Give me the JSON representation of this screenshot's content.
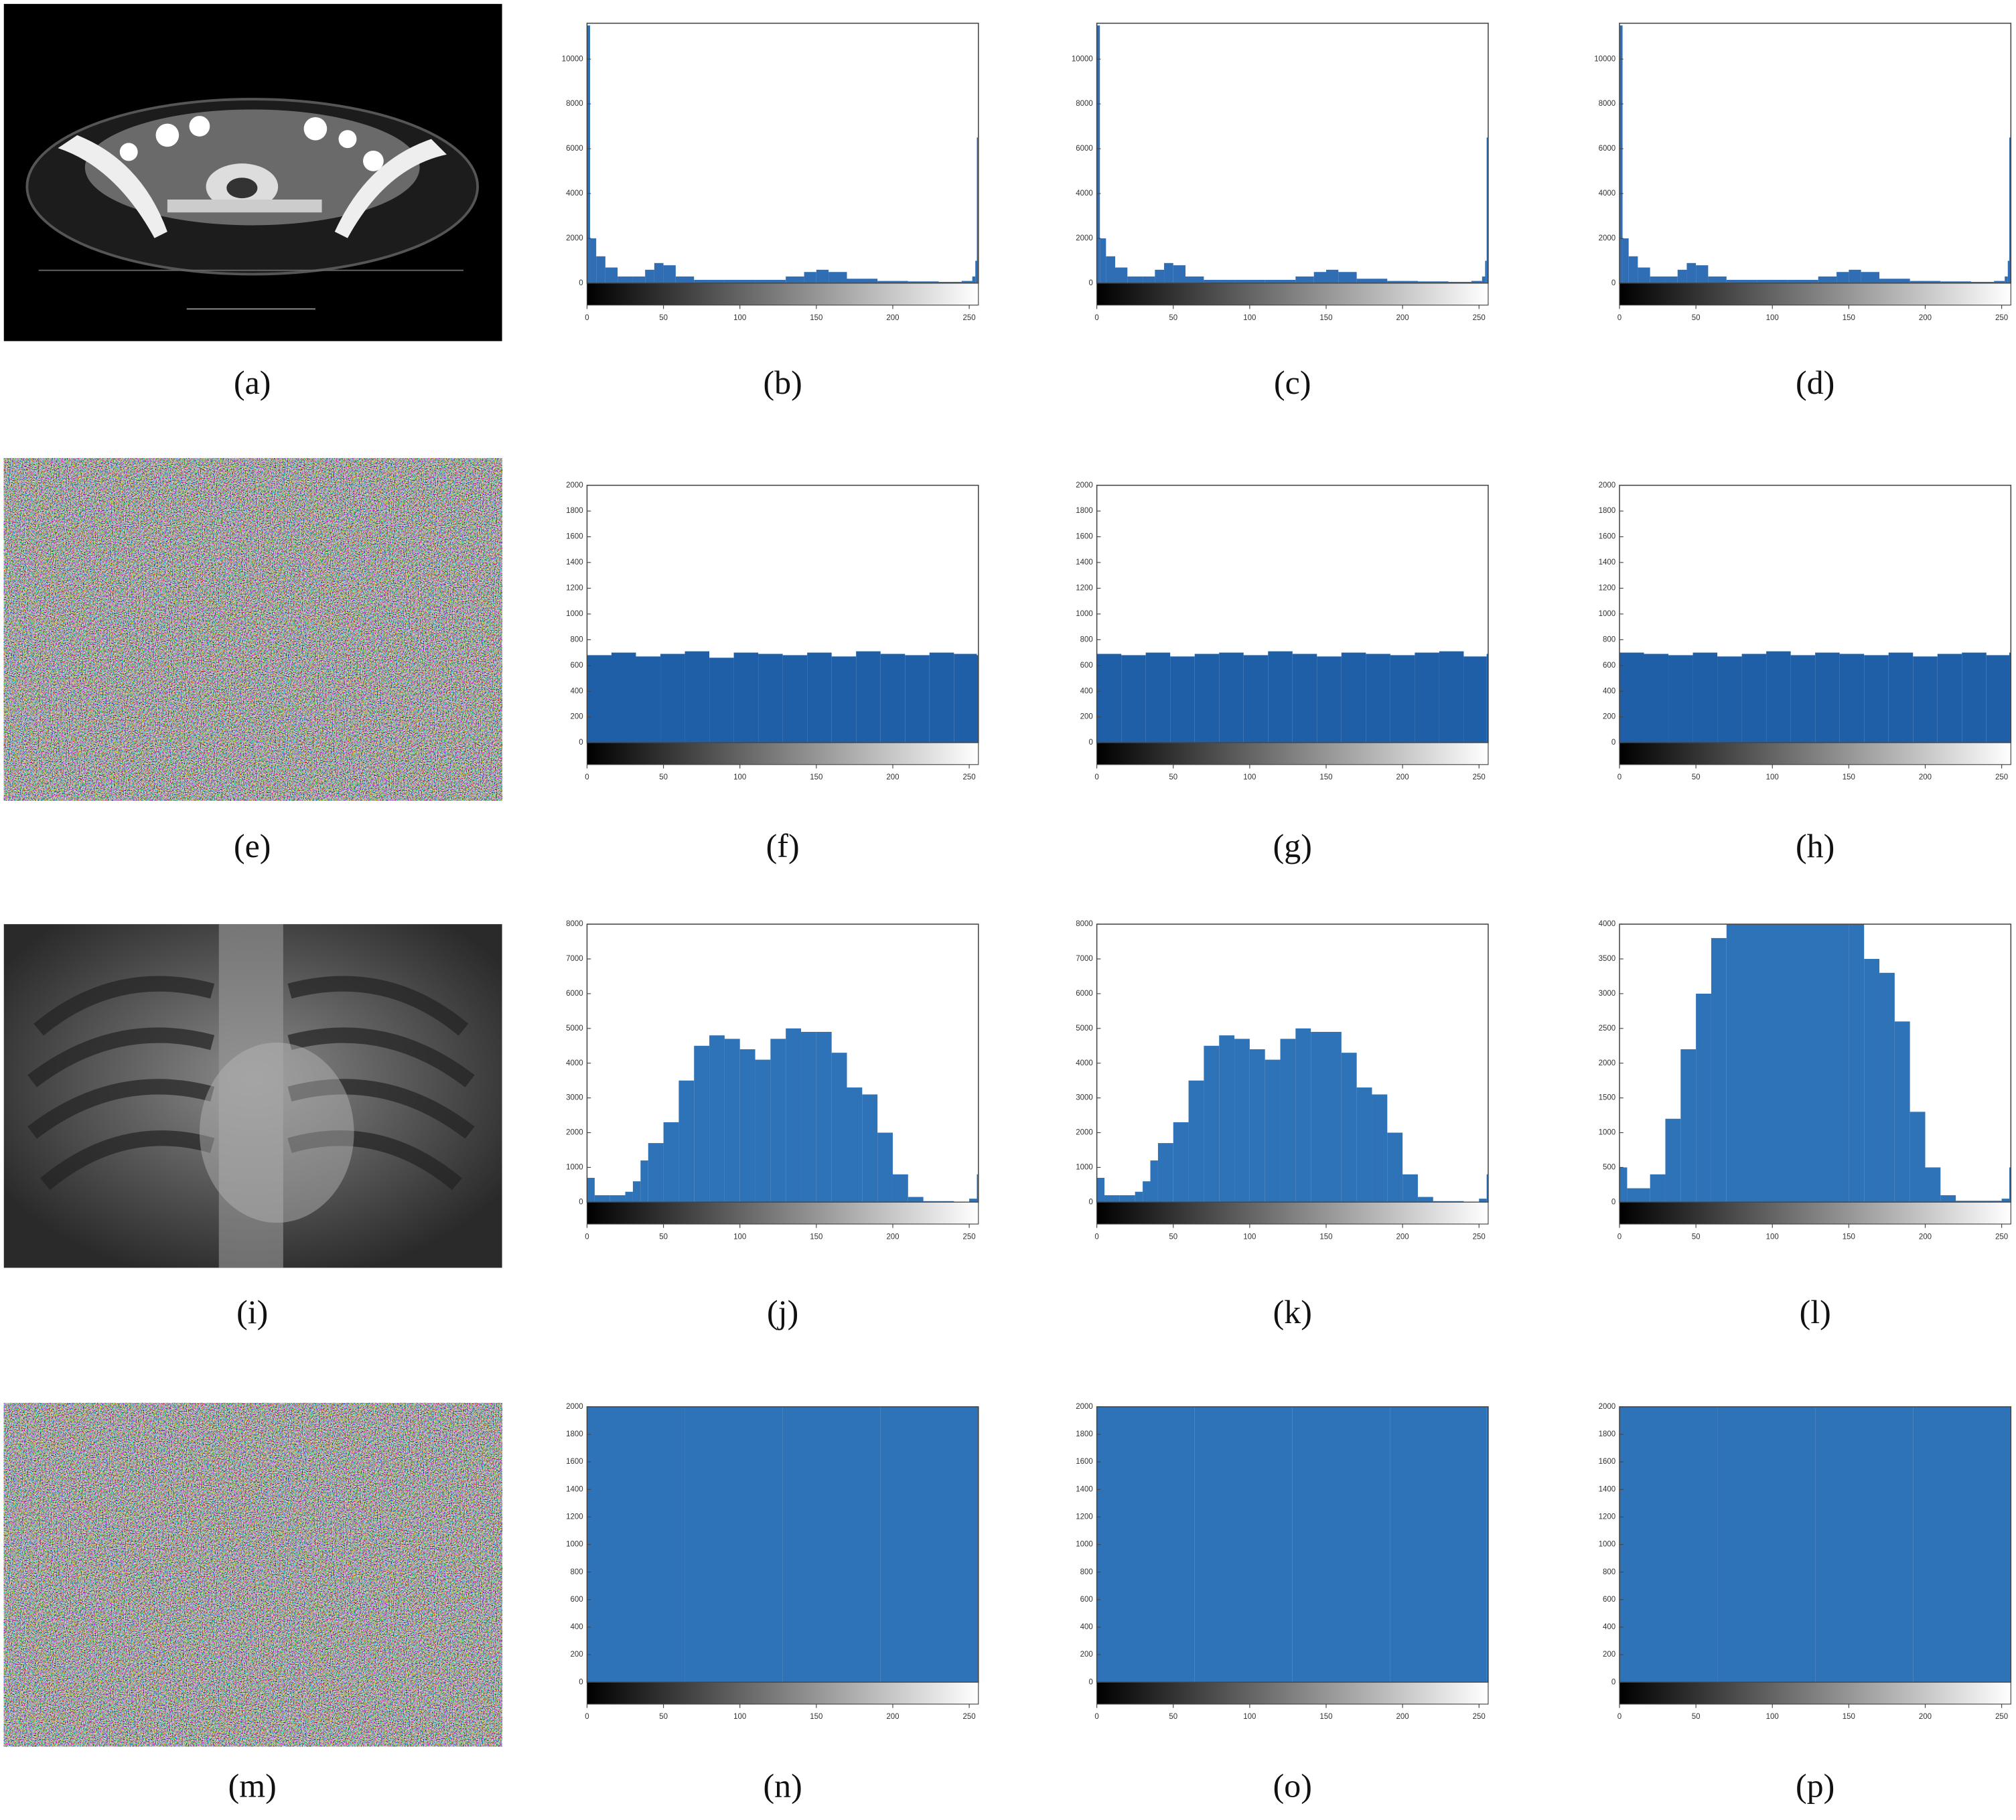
{
  "images": [
    {
      "caption": "(a)"
    },
    {
      "caption": "(e)"
    },
    {
      "caption": "(i)"
    },
    {
      "caption": "(m)"
    }
  ],
  "chart_data": [
    {
      "type": "bar",
      "caption": "(b)",
      "color": "#2f6db5",
      "xlim": [
        0,
        256
      ],
      "ylim": [
        0,
        11600
      ],
      "xticks": [
        0,
        50,
        100,
        150,
        200,
        250
      ],
      "yticks": [
        0,
        2000,
        4000,
        6000,
        8000,
        10000
      ],
      "x": [
        0,
        2,
        6,
        12,
        20,
        30,
        38,
        44,
        50,
        58,
        70,
        90,
        110,
        130,
        142,
        150,
        158,
        170,
        190,
        210,
        230,
        245,
        252,
        254,
        255
      ],
      "values": [
        11500,
        2000,
        1200,
        700,
        300,
        300,
        600,
        900,
        800,
        300,
        150,
        150,
        150,
        300,
        500,
        600,
        500,
        200,
        100,
        80,
        60,
        100,
        300,
        1000,
        6500
      ]
    },
    {
      "type": "bar",
      "caption": "(c)",
      "color": "#2f6db5",
      "xlim": [
        0,
        256
      ],
      "ylim": [
        0,
        11600
      ],
      "xticks": [
        0,
        50,
        100,
        150,
        200,
        250
      ],
      "yticks": [
        0,
        2000,
        4000,
        6000,
        8000,
        10000
      ],
      "x": [
        0,
        2,
        6,
        12,
        20,
        30,
        38,
        44,
        50,
        58,
        70,
        90,
        110,
        130,
        142,
        150,
        158,
        170,
        190,
        210,
        230,
        245,
        252,
        254,
        255
      ],
      "values": [
        11500,
        2000,
        1200,
        700,
        300,
        300,
        600,
        900,
        800,
        300,
        150,
        150,
        150,
        300,
        500,
        600,
        500,
        200,
        100,
        80,
        60,
        100,
        300,
        1000,
        6500
      ]
    },
    {
      "type": "bar",
      "caption": "(d)",
      "color": "#2f6db5",
      "xlim": [
        0,
        256
      ],
      "ylim": [
        0,
        11600
      ],
      "xticks": [
        0,
        50,
        100,
        150,
        200,
        250
      ],
      "yticks": [
        0,
        2000,
        4000,
        6000,
        8000,
        10000
      ],
      "x": [
        0,
        2,
        6,
        12,
        20,
        30,
        38,
        44,
        50,
        58,
        70,
        90,
        110,
        130,
        142,
        150,
        158,
        170,
        190,
        210,
        230,
        245,
        252,
        254,
        255
      ],
      "values": [
        11500,
        2000,
        1200,
        700,
        300,
        300,
        600,
        900,
        800,
        300,
        150,
        150,
        150,
        300,
        500,
        600,
        500,
        200,
        100,
        80,
        60,
        100,
        300,
        1000,
        6500
      ]
    },
    {
      "type": "bar",
      "caption": "(f)",
      "color": "#1f5fa8",
      "xlim": [
        0,
        256
      ],
      "ylim": [
        0,
        2000
      ],
      "xticks": [
        0,
        50,
        100,
        150,
        200,
        250
      ],
      "yticks": [
        0,
        200,
        400,
        600,
        800,
        1000,
        1200,
        1400,
        1600,
        1800,
        2000
      ],
      "x": [
        0,
        16,
        32,
        48,
        64,
        80,
        96,
        112,
        128,
        144,
        160,
        176,
        192,
        208,
        224,
        240,
        255
      ],
      "values": [
        680,
        700,
        670,
        690,
        710,
        660,
        700,
        690,
        680,
        700,
        670,
        710,
        690,
        680,
        700,
        690,
        680
      ]
    },
    {
      "type": "bar",
      "caption": "(g)",
      "color": "#1f5fa8",
      "xlim": [
        0,
        256
      ],
      "ylim": [
        0,
        2000
      ],
      "xticks": [
        0,
        50,
        100,
        150,
        200,
        250
      ],
      "yticks": [
        0,
        200,
        400,
        600,
        800,
        1000,
        1200,
        1400,
        1600,
        1800,
        2000
      ],
      "x": [
        0,
        16,
        32,
        48,
        64,
        80,
        96,
        112,
        128,
        144,
        160,
        176,
        192,
        208,
        224,
        240,
        255
      ],
      "values": [
        690,
        680,
        700,
        670,
        690,
        700,
        680,
        710,
        690,
        670,
        700,
        690,
        680,
        700,
        710,
        670,
        690
      ]
    },
    {
      "type": "bar",
      "caption": "(h)",
      "color": "#1f5fa8",
      "xlim": [
        0,
        256
      ],
      "ylim": [
        0,
        2000
      ],
      "xticks": [
        0,
        50,
        100,
        150,
        200,
        250
      ],
      "yticks": [
        0,
        200,
        400,
        600,
        800,
        1000,
        1200,
        1400,
        1600,
        1800,
        2000
      ],
      "x": [
        0,
        16,
        32,
        48,
        64,
        80,
        96,
        112,
        128,
        144,
        160,
        176,
        192,
        208,
        224,
        240,
        255
      ],
      "values": [
        700,
        690,
        680,
        700,
        670,
        690,
        710,
        680,
        700,
        690,
        680,
        700,
        670,
        690,
        700,
        680,
        700
      ]
    },
    {
      "type": "bar",
      "caption": "(j)",
      "color": "#2e72b8",
      "xlim": [
        0,
        256
      ],
      "ylim": [
        0,
        8000
      ],
      "xticks": [
        0,
        50,
        100,
        150,
        200,
        250
      ],
      "yticks": [
        0,
        1000,
        2000,
        3000,
        4000,
        5000,
        6000,
        7000,
        8000
      ],
      "x": [
        0,
        5,
        15,
        25,
        30,
        35,
        40,
        50,
        60,
        70,
        80,
        90,
        100,
        110,
        120,
        130,
        140,
        150,
        160,
        170,
        180,
        190,
        200,
        210,
        220,
        240,
        250,
        255
      ],
      "values": [
        700,
        200,
        200,
        300,
        600,
        1200,
        1700,
        2300,
        3500,
        4500,
        4800,
        4700,
        4400,
        4100,
        4700,
        5000,
        4900,
        4900,
        4300,
        3300,
        3100,
        2000,
        800,
        150,
        30,
        10,
        100,
        800
      ]
    },
    {
      "type": "bar",
      "caption": "(k)",
      "color": "#2e72b8",
      "xlim": [
        0,
        256
      ],
      "ylim": [
        0,
        8000
      ],
      "xticks": [
        0,
        50,
        100,
        150,
        200,
        250
      ],
      "yticks": [
        0,
        1000,
        2000,
        3000,
        4000,
        5000,
        6000,
        7000,
        8000
      ],
      "x": [
        0,
        5,
        15,
        25,
        30,
        35,
        40,
        50,
        60,
        70,
        80,
        90,
        100,
        110,
        120,
        130,
        140,
        150,
        160,
        170,
        180,
        190,
        200,
        210,
        220,
        240,
        250,
        255
      ],
      "values": [
        700,
        200,
        200,
        300,
        600,
        1200,
        1700,
        2300,
        3500,
        4500,
        4800,
        4700,
        4400,
        4100,
        4700,
        5000,
        4900,
        4900,
        4300,
        3300,
        3100,
        2000,
        800,
        150,
        30,
        10,
        100,
        800
      ]
    },
    {
      "type": "bar",
      "caption": "(l)",
      "color": "#2e72b8",
      "xlim": [
        0,
        256
      ],
      "ylim": [
        0,
        4000
      ],
      "xticks": [
        0,
        50,
        100,
        150,
        200,
        250
      ],
      "yticks": [
        0,
        500,
        1000,
        1500,
        2000,
        2500,
        3000,
        3500,
        4000
      ],
      "x": [
        0,
        5,
        20,
        30,
        40,
        50,
        60,
        70,
        150,
        160,
        170,
        180,
        190,
        200,
        210,
        220,
        250,
        255
      ],
      "values": [
        500,
        200,
        400,
        1200,
        2200,
        3000,
        3800,
        4000,
        4000,
        3500,
        3300,
        2600,
        1300,
        500,
        100,
        20,
        50,
        500
      ]
    },
    {
      "type": "bar",
      "caption": "(n)",
      "color": "#2e72b8",
      "xlim": [
        0,
        256
      ],
      "ylim": [
        0,
        2000
      ],
      "xticks": [
        0,
        50,
        100,
        150,
        200,
        250
      ],
      "yticks": [
        0,
        200,
        400,
        600,
        800,
        1000,
        1200,
        1400,
        1600,
        1800,
        2000
      ],
      "x": [
        0,
        64,
        128,
        192,
        255
      ],
      "values": [
        2000,
        2000,
        2000,
        2000,
        2000
      ]
    },
    {
      "type": "bar",
      "caption": "(o)",
      "color": "#2e72b8",
      "xlim": [
        0,
        256
      ],
      "ylim": [
        0,
        2000
      ],
      "xticks": [
        0,
        50,
        100,
        150,
        200,
        250
      ],
      "yticks": [
        0,
        200,
        400,
        600,
        800,
        1000,
        1200,
        1400,
        1600,
        1800,
        2000
      ],
      "x": [
        0,
        64,
        128,
        192,
        255
      ],
      "values": [
        2000,
        2000,
        2000,
        2000,
        2000
      ]
    },
    {
      "type": "bar",
      "caption": "(p)",
      "color": "#2e72b8",
      "xlim": [
        0,
        256
      ],
      "ylim": [
        0,
        2000
      ],
      "xticks": [
        0,
        50,
        100,
        150,
        200,
        250
      ],
      "yticks": [
        0,
        200,
        400,
        600,
        800,
        1000,
        1200,
        1400,
        1600,
        1800,
        2000
      ],
      "x": [
        0,
        64,
        128,
        192,
        255
      ],
      "values": [
        2000,
        2000,
        2000,
        2000,
        2000
      ]
    }
  ]
}
